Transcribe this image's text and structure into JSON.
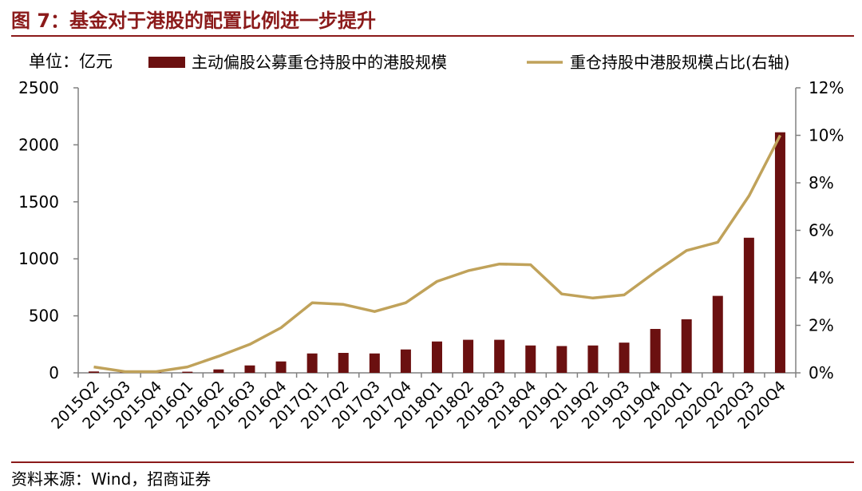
{
  "header": {
    "title": "图 7：基金对于港股的配置比例进一步提升"
  },
  "footer": {
    "source": "资料来源：Wind，招商证券"
  },
  "colors": {
    "title": "#8b1a1a",
    "bar": "#6b1010",
    "line": "#c0a25a",
    "axis": "#808080"
  },
  "chart_data": {
    "type": "bar",
    "unit_label": "单位：亿元",
    "categories": [
      "2015Q2",
      "2015Q3",
      "2015Q4",
      "2016Q1",
      "2016Q2",
      "2016Q3",
      "2016Q4",
      "2017Q1",
      "2017Q2",
      "2017Q3",
      "2017Q4",
      "2018Q1",
      "2018Q2",
      "2018Q3",
      "2018Q4",
      "2019Q1",
      "2019Q2",
      "2019Q3",
      "2019Q4",
      "2020Q1",
      "2020Q2",
      "2020Q3",
      "2020Q4"
    ],
    "series": [
      {
        "name": "主动偏股公募重仓持股中的港股规模",
        "kind": "bar",
        "axis": "left",
        "values": [
          12,
          3,
          5,
          10,
          30,
          65,
          100,
          170,
          175,
          170,
          205,
          275,
          290,
          290,
          240,
          235,
          240,
          265,
          385,
          470,
          675,
          1185,
          2110
        ]
      },
      {
        "name": "重仓持股中港股规模占比(右轴)",
        "kind": "line",
        "axis": "right",
        "values": [
          0.25,
          0.05,
          0.05,
          0.25,
          0.7,
          1.2,
          1.9,
          2.95,
          2.88,
          2.58,
          2.95,
          3.85,
          4.3,
          4.58,
          4.55,
          3.32,
          3.15,
          3.28,
          4.25,
          5.15,
          5.5,
          7.45,
          10.0
        ]
      }
    ],
    "y_left": {
      "lim": [
        0,
        2500
      ],
      "ticks": [
        "0",
        "500",
        "1000",
        "1500",
        "2000",
        "2500"
      ],
      "tick_values": [
        0,
        500,
        1000,
        1500,
        2000,
        2500
      ]
    },
    "y_right": {
      "lim": [
        0,
        12
      ],
      "ticks": [
        "0%",
        "2%",
        "4%",
        "6%",
        "8%",
        "10%",
        "12%"
      ],
      "tick_values": [
        0,
        2,
        4,
        6,
        8,
        10,
        12
      ]
    },
    "legend_position": "top",
    "grid": false
  }
}
